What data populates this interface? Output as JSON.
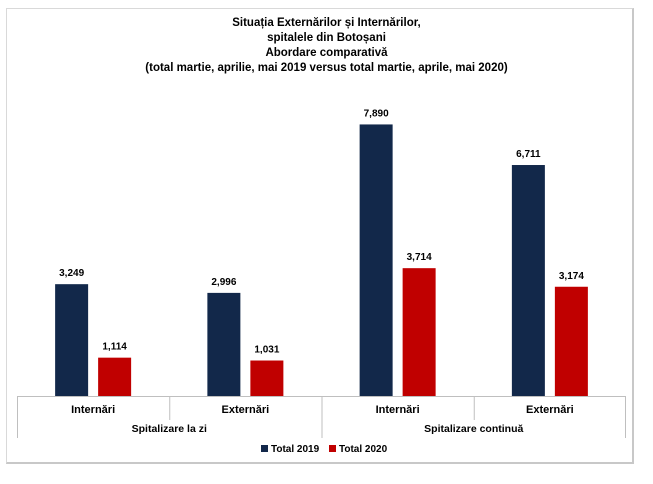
{
  "title_lines": [
    "Situația Externărilor și Internărilor,",
    "spitalele din Botoșani",
    "Abordare comparativă",
    "(total martie, aprilie, mai 2019  versus total martie, aprile, mai 2020)"
  ],
  "colors": {
    "total_2019": "#12284a",
    "total_2020": "#c00000"
  },
  "chart_data": {
    "type": "bar",
    "title": "Situația Externărilor și Internărilor, spitalele din Botoșani Abordare comparativă (total martie, aprilie, mai 2019  versus total martie, aprile, mai 2020)",
    "categories": [
      "Internări",
      "Externări",
      "Internări",
      "Externări"
    ],
    "groups": [
      {
        "label": "Spitalizare la zi",
        "categories": [
          0,
          1
        ]
      },
      {
        "label": "Spitalizare continuă",
        "categories": [
          2,
          3
        ]
      }
    ],
    "series": [
      {
        "name": "Total 2019",
        "values": [
          3249,
          2996,
          7890,
          6711
        ],
        "labels": [
          "3,249",
          "2,996",
          "7,890",
          "6,711"
        ]
      },
      {
        "name": "Total 2020",
        "values": [
          1114,
          1031,
          3714,
          3174
        ],
        "labels": [
          "1,114",
          "1,031",
          "3,714",
          "3,174"
        ]
      }
    ],
    "ylim": [
      0,
      8600
    ],
    "grid": false,
    "legend": "bottom"
  }
}
